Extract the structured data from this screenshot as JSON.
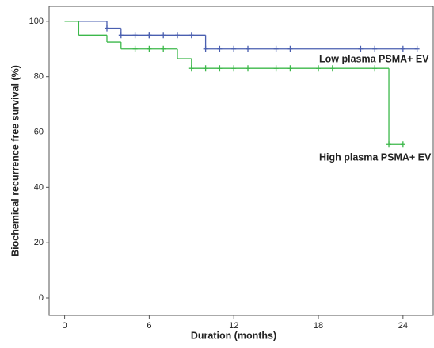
{
  "chart_data": {
    "type": "step",
    "x_label": "Duration (months)",
    "y_label": "Biochemical recurrence free survival (%)",
    "xlim": [
      -1.1,
      26.2
    ],
    "ylim": [
      -6.3,
      105.4
    ],
    "xticks": [
      0,
      6,
      12,
      18,
      24
    ],
    "yticks": [
      0,
      20,
      40,
      60,
      80,
      100
    ],
    "series": [
      {
        "name": "Low plasma PSMA+ EV",
        "color": "#4a5fb0",
        "x": [
          0,
          3,
          4,
          10,
          25
        ],
        "values": [
          100,
          97.5,
          95,
          90,
          90
        ],
        "censor_x": [
          3,
          4,
          5,
          6,
          6,
          7,
          8,
          9,
          10,
          11,
          12,
          13,
          15,
          16,
          21,
          22,
          24,
          25
        ],
        "censor_values": [
          97.5,
          95,
          95,
          95,
          95,
          95,
          95,
          95,
          90,
          90,
          90,
          90,
          90,
          90,
          90,
          90,
          90,
          90
        ]
      },
      {
        "name": "High plasma PSMA+ EV",
        "color": "#3cb84a",
        "x": [
          0,
          1,
          3,
          4,
          8,
          9,
          23,
          24
        ],
        "values": [
          100,
          95,
          92.5,
          90,
          86.5,
          83,
          55.5,
          55.5
        ],
        "censor_x": [
          5,
          6,
          7,
          9,
          10,
          11,
          12,
          13,
          15,
          16,
          18,
          19,
          22,
          23,
          24
        ],
        "censor_values": [
          90,
          90,
          90,
          83,
          83,
          83,
          83,
          83,
          83,
          83,
          83,
          83,
          83,
          55.5,
          55.5
        ]
      }
    ]
  }
}
